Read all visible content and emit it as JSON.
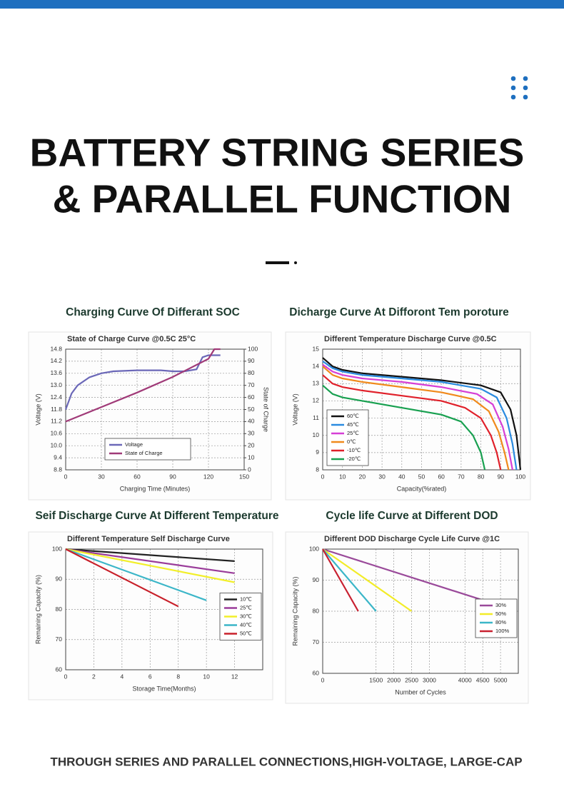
{
  "header": {
    "title_line1": "BATTERY STRING SERIES",
    "title_line2": "& PARALLEL FUNCTION"
  },
  "captions": [
    "Charging Curve Of Differant SOC",
    "Dicharge Curve At Difforont Tem poroture",
    "Seif Discharge Curve At Different Temperature",
    "Cycle life Curve at Different DOD"
  ],
  "footer": "THROUGH SERIES AND PARALLEL CONNECTIONS,HIGH-VOLTAGE, LARGE-CAP",
  "chart_data": [
    {
      "type": "line",
      "title": "State of Charge Curve @0.5C 25°C",
      "x_label": "Charging Time (Minutes)",
      "y_label": "Voltage (V)",
      "y2_label": "State of Charge",
      "xlim": [
        0,
        150
      ],
      "xticks": [
        0,
        30,
        60,
        90,
        120,
        150
      ],
      "ylim": [
        8.8,
        14.8
      ],
      "yticks": [
        8.8,
        9.4,
        {
          "value": 10,
          "label": "10.0"
        },
        10.6,
        11.2,
        11.8,
        12.4,
        {
          "value": 13,
          "label": "13.0"
        },
        13.6,
        14.2,
        14.8
      ],
      "y2lim": [
        0,
        100
      ],
      "y2ticks": [
        0,
        10,
        20,
        30,
        40,
        50,
        60,
        70,
        80,
        90,
        100
      ],
      "grid": true,
      "legend": "lower center",
      "series": [
        {
          "name": "Voltage",
          "color": "#6b68b8",
          "x": [
            0,
            5,
            10,
            20,
            30,
            40,
            60,
            80,
            90,
            100,
            110,
            115,
            120,
            130
          ],
          "values": [
            11.8,
            12.6,
            13.0,
            13.4,
            13.6,
            13.7,
            13.75,
            13.75,
            13.7,
            13.7,
            13.8,
            14.4,
            14.5,
            14.5
          ]
        },
        {
          "name": "State of Charge",
          "color": "#a03a78",
          "axis": "y2",
          "x": [
            0,
            30,
            60,
            90,
            120,
            125,
            130
          ],
          "values": [
            40,
            52,
            64,
            77,
            92,
            100,
            100
          ]
        }
      ]
    },
    {
      "type": "line",
      "title": "Different Temperature Discharge Curve @0.5C",
      "x_label": "Capacity(%rated)",
      "y_label": "Voltage (V)",
      "xlim": [
        0,
        100
      ],
      "xticks": [
        0,
        10,
        20,
        30,
        40,
        50,
        60,
        70,
        80,
        90,
        100
      ],
      "ylim": [
        8,
        15
      ],
      "yticks": [
        8,
        9,
        10,
        11,
        12,
        13,
        14,
        15
      ],
      "grid": true,
      "legend": "lower left",
      "series": [
        {
          "name": "60℃",
          "color": "#111111",
          "x": [
            0,
            5,
            10,
            20,
            40,
            60,
            80,
            90,
            95,
            98,
            100
          ],
          "values": [
            14.5,
            14.0,
            13.8,
            13.6,
            13.4,
            13.2,
            12.9,
            12.5,
            11.5,
            10,
            8
          ]
        },
        {
          "name": "45℃",
          "color": "#2a8be0",
          "x": [
            0,
            5,
            10,
            20,
            40,
            60,
            80,
            88,
            93,
            96,
            98
          ],
          "values": [
            14.3,
            13.9,
            13.7,
            13.5,
            13.3,
            13.1,
            12.7,
            12.2,
            11,
            9.5,
            8
          ]
        },
        {
          "name": "25℃",
          "color": "#d63fd6",
          "x": [
            0,
            5,
            10,
            20,
            40,
            60,
            78,
            86,
            91,
            94,
            96
          ],
          "values": [
            14.1,
            13.7,
            13.5,
            13.3,
            13.1,
            12.8,
            12.4,
            11.8,
            10.5,
            9.2,
            8
          ]
        },
        {
          "name": "0℃",
          "color": "#f08a1c",
          "x": [
            0,
            5,
            10,
            20,
            40,
            60,
            76,
            84,
            89,
            92,
            94
          ],
          "values": [
            14.0,
            13.5,
            13.3,
            13.1,
            12.8,
            12.5,
            12.1,
            11.4,
            10.2,
            9,
            8
          ]
        },
        {
          "name": "-10℃",
          "color": "#e0202a",
          "x": [
            0,
            5,
            10,
            20,
            40,
            60,
            72,
            80,
            85,
            88,
            90
          ],
          "values": [
            13.5,
            13.0,
            12.8,
            12.6,
            12.3,
            12.0,
            11.6,
            11,
            10,
            9,
            8
          ]
        },
        {
          "name": "-20℃",
          "color": "#18a050",
          "x": [
            0,
            5,
            10,
            20,
            40,
            60,
            70,
            76,
            80,
            82
          ],
          "values": [
            12.9,
            12.4,
            12.2,
            12.0,
            11.6,
            11.2,
            10.8,
            10,
            9,
            8
          ]
        }
      ]
    },
    {
      "type": "line",
      "title": "Different Temperature Self Discharge Curve",
      "x_label": "Storage Time(Months)",
      "y_label": "Remaining Capacity (%)",
      "xlim": [
        0,
        14
      ],
      "xticks": [
        0,
        2,
        4,
        6,
        8,
        10,
        12
      ],
      "ylim": [
        60,
        100
      ],
      "yticks": [
        60,
        70,
        80,
        90,
        100
      ],
      "grid": true,
      "legend": "right",
      "series": [
        {
          "name": "10℃",
          "color": "#222222",
          "x": [
            0,
            12
          ],
          "values": [
            100,
            96
          ]
        },
        {
          "name": "25℃",
          "color": "#9a3c9a",
          "x": [
            0,
            12
          ],
          "values": [
            100,
            92
          ]
        },
        {
          "name": "30℃",
          "color": "#f2ef2a",
          "x": [
            0,
            12
          ],
          "values": [
            100,
            89
          ]
        },
        {
          "name": "40℃",
          "color": "#3bb6c8",
          "x": [
            0,
            10
          ],
          "values": [
            100,
            83
          ]
        },
        {
          "name": "50℃",
          "color": "#c8202a",
          "x": [
            0,
            8
          ],
          "values": [
            100,
            81
          ]
        }
      ]
    },
    {
      "type": "line",
      "title": "Different DOD Discharge Cycle Life Curve @1C",
      "x_label": "Number of Cycles",
      "y_label": "Remaining Capacity (%)",
      "xlim": [
        0,
        5500
      ],
      "xticks": [
        0,
        1500,
        2000,
        2500,
        3000,
        4000,
        4500,
        5000
      ],
      "ylim": [
        60,
        100
      ],
      "yticks": [
        60,
        70,
        80,
        90,
        100
      ],
      "grid": true,
      "legend": "right",
      "series": [
        {
          "name": "30%",
          "color": "#9a4a9a",
          "x": [
            0,
            5200
          ],
          "values": [
            100,
            81
          ]
        },
        {
          "name": "50%",
          "color": "#f2ec28",
          "x": [
            0,
            2500
          ],
          "values": [
            100,
            80
          ]
        },
        {
          "name": "80%",
          "color": "#3bb6c8",
          "x": [
            0,
            1500
          ],
          "values": [
            100,
            80
          ]
        },
        {
          "name": "100%",
          "color": "#c82030",
          "x": [
            0,
            1000
          ],
          "values": [
            100,
            80
          ]
        }
      ]
    }
  ]
}
